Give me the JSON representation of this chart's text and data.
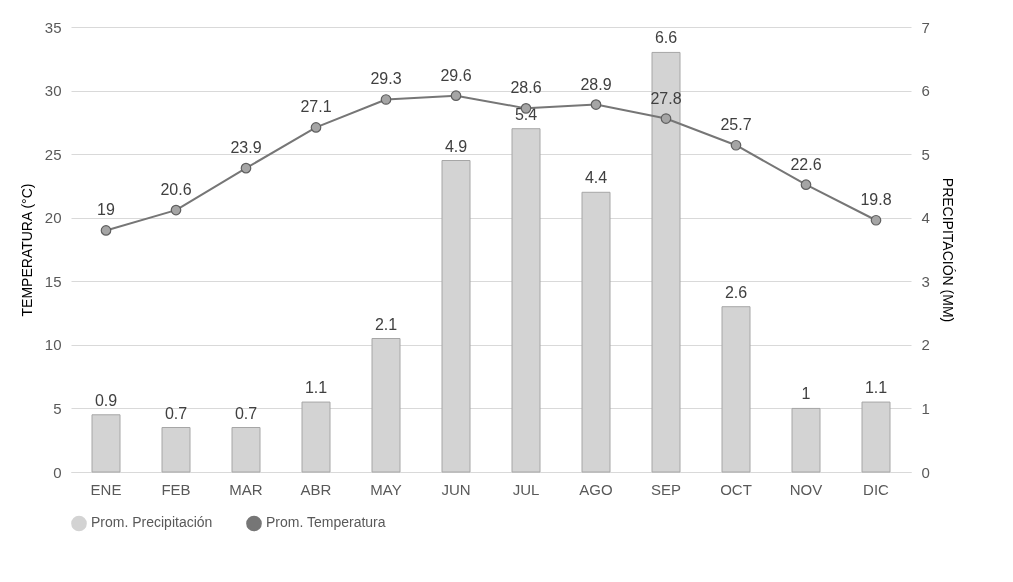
{
  "chart_data": {
    "type": "bar",
    "categories": [
      "ENE",
      "FEB",
      "MAR",
      "ABR",
      "MAY",
      "JUN",
      "JUL",
      "AGO",
      "SEP",
      "OCT",
      "NOV",
      "DIC"
    ],
    "ylabel": "TEMPERATURA (°C)",
    "y2label": "PRECIPITACIÓN (MM)",
    "ylim": [
      0,
      35
    ],
    "yticks": [
      0,
      5,
      10,
      15,
      20,
      25,
      30,
      35
    ],
    "y2lim": [
      0,
      7
    ],
    "y2ticks": [
      0,
      1,
      2,
      3,
      4,
      5,
      6,
      7
    ],
    "series": [
      {
        "name": "Prom. Precipitación",
        "axis": "y2",
        "color": "#d3d3d3",
        "values": [
          0.9,
          0.7,
          0.7,
          1.1,
          2.1,
          4.9,
          5.4,
          4.4,
          6.6,
          2.6,
          1,
          1.1
        ]
      },
      {
        "name": "Prom. Temperatura",
        "type": "line",
        "color": "#767676",
        "values": [
          19,
          20.6,
          23.9,
          27.1,
          29.3,
          29.6,
          28.6,
          28.9,
          27.8,
          25.7,
          22.6,
          19.8
        ]
      }
    ],
    "data_labels": true,
    "marker": "circle",
    "grid": "y",
    "legend": "bottom"
  }
}
